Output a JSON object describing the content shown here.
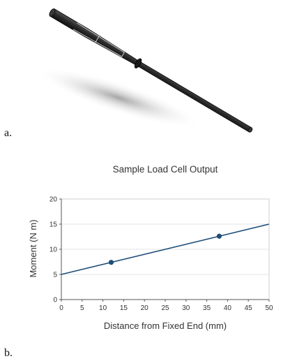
{
  "figure": {
    "panel_a_label": "a.",
    "panel_b_label": "b."
  },
  "colors": {
    "rod_body": "#2a2a2a",
    "rod_seam": "#dcdcdc",
    "line": "#1f4e79",
    "marker": "#1f4e79",
    "grid": "#e6e6e6",
    "axis": "#555555"
  },
  "chart_data": {
    "type": "line",
    "title": "Sample Load Cell Output",
    "xlabel": "Distance from Fixed End (mm)",
    "ylabel": "Moment (N m)",
    "xlim": [
      0,
      50
    ],
    "ylim": [
      0,
      20
    ],
    "x_ticks": [
      0,
      5,
      10,
      15,
      20,
      25,
      30,
      35,
      40,
      45,
      50
    ],
    "y_ticks": [
      0,
      5,
      10,
      15,
      20
    ],
    "grid": "horizontal",
    "line": {
      "x": [
        0,
        50
      ],
      "y": [
        5,
        15
      ]
    },
    "points": [
      {
        "x": 12,
        "y": 7.4
      },
      {
        "x": 38,
        "y": 12.6
      }
    ]
  }
}
